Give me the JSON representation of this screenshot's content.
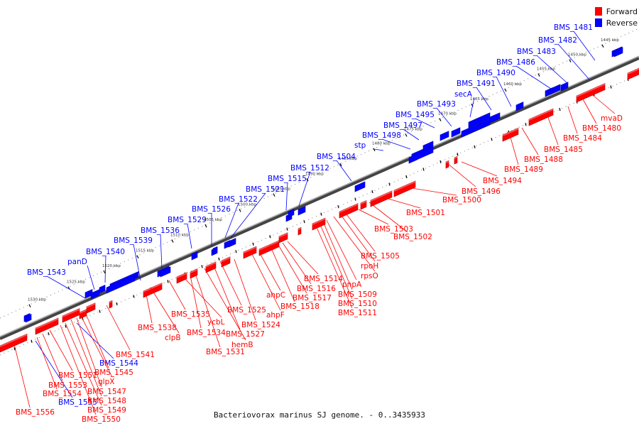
{
  "colors": {
    "forward": "#ff0000",
    "reverse": "#0000ff",
    "axis": "#666666"
  },
  "legend": {
    "forward_label": "Forward",
    "reverse_label": "Reverse"
  },
  "caption": "Bacteriovorax marinus SJ genome. - 0..3435933",
  "ticks": [
    "1530 kbp",
    "1525 kbp",
    "1520 kbp",
    "1515 kbp",
    "1510 kbp",
    "1505 kbp",
    "1500 kbp",
    "1495 kbp",
    "1490 kbp",
    "1485 kbp",
    "1480 kbp",
    "1475 kbp",
    "1470 kbp",
    "1465 kbp",
    "1460 kbp",
    "1455 kbp",
    "1450 kbp",
    "1445 kbp"
  ],
  "reverse_genes": [
    "BMS_1481",
    "BMS_1482",
    "BMS_1483",
    "BMS_1486",
    "BMS_1490",
    "BMS_1491",
    "secA",
    "BMS_1493",
    "BMS_1495",
    "BMS_1497",
    "BMS_1498",
    "stp",
    "BMS_1504",
    "BMS_1512",
    "BMS_1515",
    "BMS_1521",
    "BMS_1522",
    "BMS_1526",
    "BMS_1529",
    "BMS_1536",
    "BMS_1539",
    "BMS_1540",
    "panD",
    "BMS_1543",
    "BMS_1544",
    "BMS_1555"
  ],
  "forward_genes": [
    "mvaD",
    "BMS_1480",
    "BMS_1484",
    "BMS_1485",
    "BMS_1488",
    "BMS_1489",
    "BMS_1494",
    "BMS_1496",
    "BMS_1500",
    "BMS_1501",
    "BMS_1502",
    "BMS_1503",
    "BMS_1505",
    "rpoH",
    "rpsO",
    "pnpA",
    "BMS_1509",
    "BMS_1510",
    "BMS_1511",
    "BMS_1514",
    "BMS_1516",
    "BMS_1517",
    "BMS_1518",
    "ahpC",
    "ahpF",
    "BMS_1524",
    "BMS_1525",
    "BMS_1527",
    "hemB",
    "BMS_1531",
    "BMS_1534",
    "ycbL",
    "BMS_1535",
    "clpB",
    "BMS_1538",
    "BMS_1541",
    "BMS_1545",
    "glpX",
    "BMS_1547",
    "BMS_1548",
    "BMS_1549",
    "BMS_1550",
    "BMS_1551",
    "BMS_1553",
    "BMS_1554",
    "BMS_1556"
  ]
}
